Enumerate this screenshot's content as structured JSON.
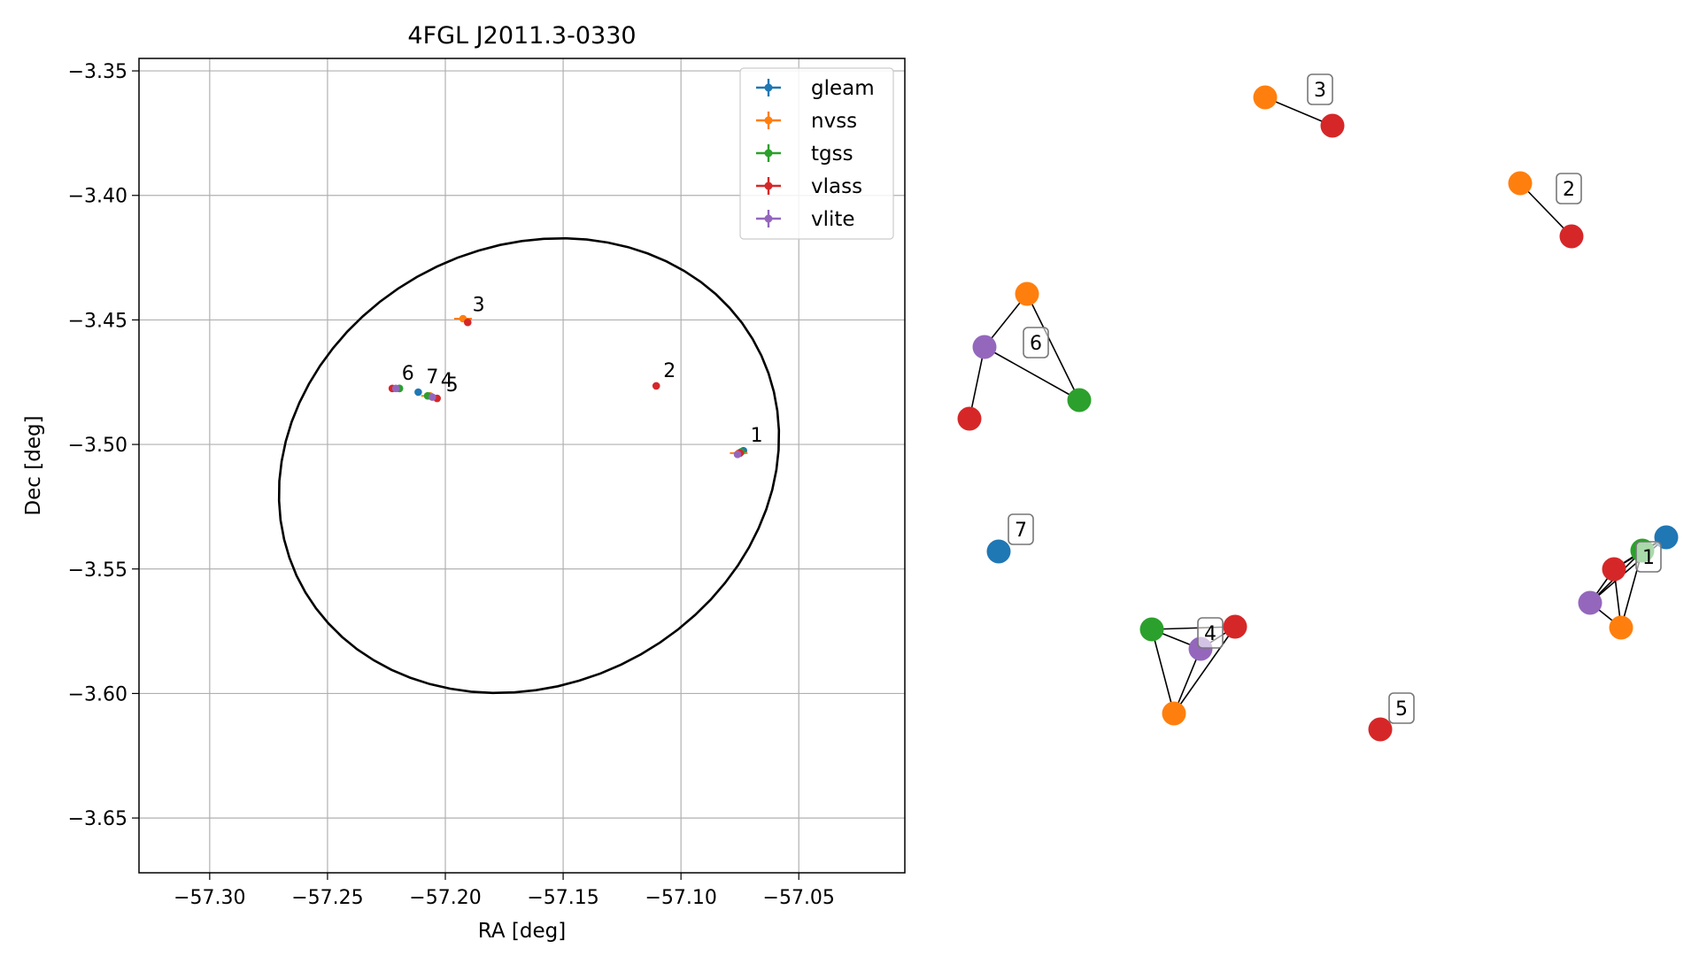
{
  "chart_data": [
    {
      "type": "scatter",
      "title": "4FGL J2011.3-0330",
      "xlabel": "RA [deg]",
      "ylabel": "Dec [deg]",
      "xlim": [
        -57.33,
        -57.005
      ],
      "ylim": [
        -3.672,
        -3.345
      ],
      "xticks": [
        -57.3,
        -57.25,
        -57.2,
        -57.15,
        -57.1,
        -57.05
      ],
      "xtick_labels": [
        "−57.30",
        "−57.25",
        "−57.20",
        "−57.15",
        "−57.10",
        "−57.05"
      ],
      "yticks": [
        -3.35,
        -3.4,
        -3.45,
        -3.5,
        -3.55,
        -3.6,
        -3.65
      ],
      "ytick_labels": [
        "−3.35",
        "−3.40",
        "−3.45",
        "−3.50",
        "−3.55",
        "−3.60",
        "−3.65"
      ],
      "grid": true,
      "legend_position": "top-right",
      "ellipse": {
        "center": [
          -57.1645,
          -3.5085
        ],
        "semi_major": 0.1082,
        "semi_minor": 0.0888,
        "angle_deg": 20,
        "color": "#000000"
      },
      "series": [
        {
          "name": "gleam",
          "color": "#1f77b4",
          "points": [
            [
              -57.0735,
              -3.5025
            ],
            [
              -57.2115,
              -3.479
            ],
            [
              -57.2195,
              -3.4775
            ]
          ]
        },
        {
          "name": "nvss",
          "color": "#ff7f0e",
          "points": [
            [
              -57.1925,
              -3.4495
            ],
            [
              -57.2065,
              -3.4805
            ],
            [
              -57.0755,
              -3.5035
            ]
          ]
        },
        {
          "name": "tgss",
          "color": "#2ca02c",
          "points": [
            [
              -57.2195,
              -3.4775
            ],
            [
              -57.2075,
              -3.4805
            ],
            [
              -57.0745,
              -3.503
            ]
          ]
        },
        {
          "name": "vlass",
          "color": "#d62728",
          "points": [
            [
              -57.1905,
              -3.451
            ],
            [
              -57.1105,
              -3.4765
            ],
            [
              -57.2035,
              -3.4815
            ],
            [
              -57.2225,
              -3.4775
            ],
            [
              -57.075,
              -3.5035
            ]
          ]
        },
        {
          "name": "vlite",
          "color": "#9467bd",
          "points": [
            [
              -57.2055,
              -3.481
            ],
            [
              -57.221,
              -3.4775
            ],
            [
              -57.076,
              -3.504
            ]
          ]
        }
      ],
      "annotations": [
        {
          "text": "1",
          "x": -57.0735,
          "y": -3.5025
        },
        {
          "text": "2",
          "x": -57.1105,
          "y": -3.4765
        },
        {
          "text": "3",
          "x": -57.1915,
          "y": -3.45
        },
        {
          "text": "4",
          "x": -57.205,
          "y": -3.4805
        },
        {
          "text": "5",
          "x": -57.2035,
          "y": -3.4815
        },
        {
          "text": "6",
          "x": -57.2215,
          "y": -3.4775
        },
        {
          "text": "7",
          "x": -57.2115,
          "y": -3.479
        }
      ]
    },
    {
      "type": "network-graph",
      "groups": [
        {
          "label": "1",
          "nodes": [
            {
              "catalog": "gleam"
            },
            {
              "catalog": "tgss"
            },
            {
              "catalog": "vlass"
            },
            {
              "catalog": "vlite"
            },
            {
              "catalog": "nvss"
            }
          ]
        },
        {
          "label": "2",
          "nodes": [
            {
              "catalog": "nvss"
            },
            {
              "catalog": "vlass"
            }
          ]
        },
        {
          "label": "3",
          "nodes": [
            {
              "catalog": "nvss"
            },
            {
              "catalog": "vlass"
            }
          ]
        },
        {
          "label": "4",
          "nodes": [
            {
              "catalog": "tgss"
            },
            {
              "catalog": "vlite"
            },
            {
              "catalog": "vlass"
            },
            {
              "catalog": "nvss"
            }
          ]
        },
        {
          "label": "5",
          "nodes": [
            {
              "catalog": "vlass"
            }
          ]
        },
        {
          "label": "6",
          "nodes": [
            {
              "catalog": "nvss"
            },
            {
              "catalog": "vlite"
            },
            {
              "catalog": "tgss"
            },
            {
              "catalog": "vlass"
            }
          ]
        },
        {
          "label": "7",
          "nodes": [
            {
              "catalog": "gleam"
            }
          ]
        }
      ]
    }
  ]
}
